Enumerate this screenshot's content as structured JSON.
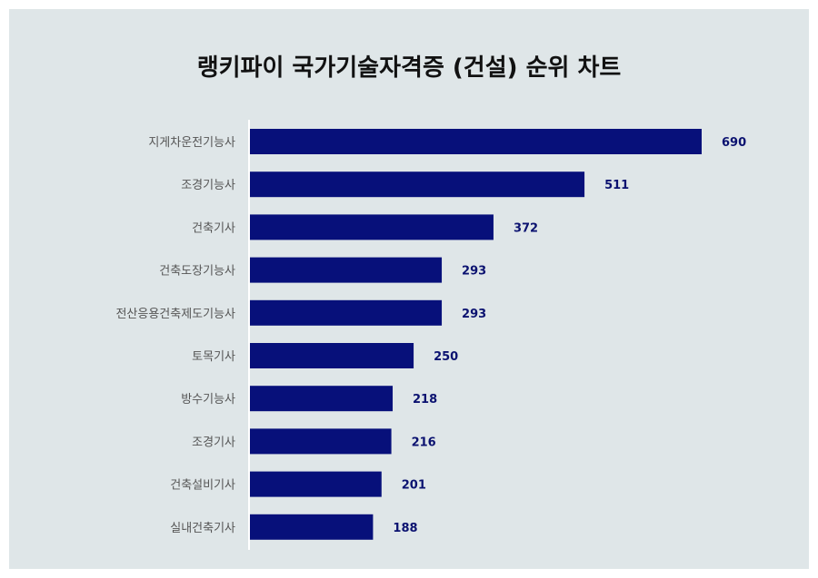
{
  "chart_data": {
    "type": "bar",
    "orientation": "horizontal",
    "title": "랭키파이 국가기술자격증 (건설) 순위 차트",
    "categories": [
      "지게차운전기능사",
      "조경기능사",
      "건축기사",
      "건축도장기능사",
      "전산응용건축제도기능사",
      "토목기사",
      "방수기능사",
      "조경기사",
      "건축설비기사",
      "실내건축기사"
    ],
    "values": [
      690,
      511,
      372,
      293,
      293,
      250,
      218,
      216,
      201,
      188
    ],
    "xlim": [
      0,
      690
    ],
    "grid": false,
    "legend": "none",
    "colors": {
      "bar": "#07107a",
      "value_label": "#0b1270",
      "background": "#dfe6e8",
      "axis": "#ffffff"
    }
  }
}
